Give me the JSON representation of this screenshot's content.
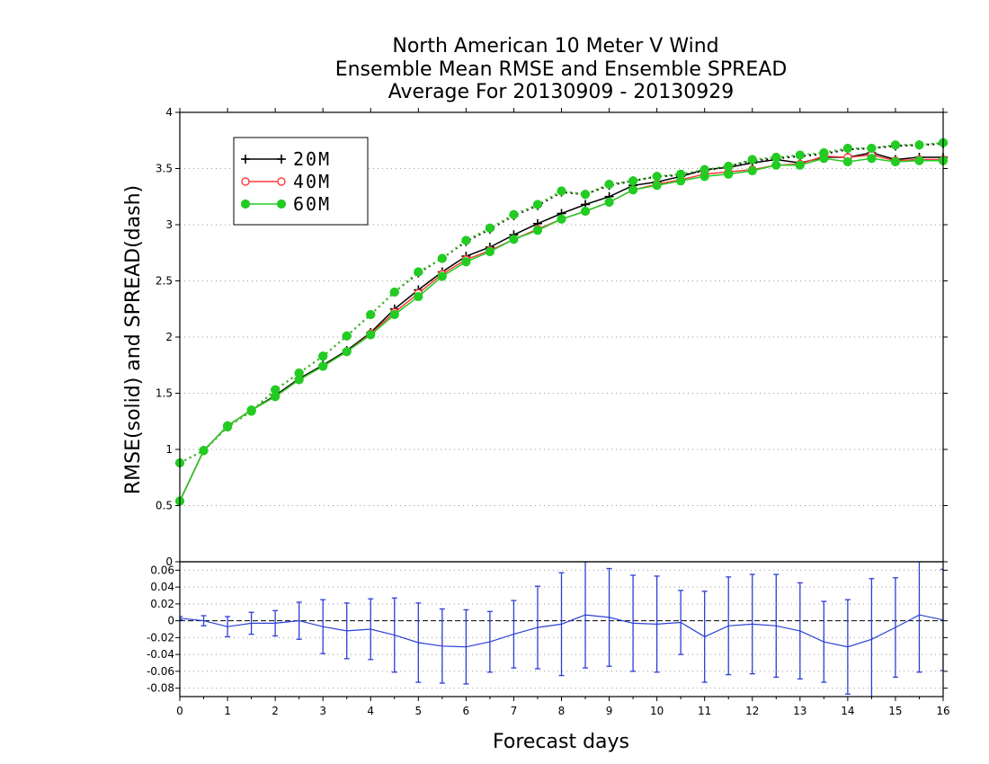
{
  "chart_data": [
    {
      "type": "line",
      "title_lines": [
        "North American 10 Meter V Wind",
        "Ensemble Mean RMSE and Ensemble SPREAD",
        "Average For 20130909 - 20130929"
      ],
      "xlabel": "Forecast days",
      "ylabel": "RMSE(solid) and SPREAD(dash)",
      "xlim": [
        0,
        16
      ],
      "ylim": [
        0,
        4
      ],
      "x_ticks": [
        "0",
        "1",
        "2",
        "3",
        "4",
        "5",
        "6",
        "7",
        "8",
        "9",
        "10",
        "11",
        "12",
        "13",
        "14",
        "15",
        "16"
      ],
      "y_ticks": [
        "0",
        "0.5",
        "1",
        "1.5",
        "2",
        "2.5",
        "3",
        "3.5",
        "4"
      ],
      "grid": "horizontal-dotted",
      "legend_position": "top-left",
      "x": [
        0,
        0.5,
        1,
        1.5,
        2,
        2.5,
        3,
        3.5,
        4,
        4.5,
        5,
        5.5,
        6,
        6.5,
        7,
        7.5,
        8,
        8.5,
        9,
        9.5,
        10,
        10.5,
        11,
        11.5,
        12,
        12.5,
        13,
        13.5,
        14,
        14.5,
        15,
        15.5,
        16
      ],
      "series": [
        {
          "name": "20M",
          "color": "#000000",
          "marker": "plus",
          "rmse": [
            0.54,
            0.99,
            1.21,
            1.35,
            1.48,
            1.63,
            1.75,
            1.88,
            2.04,
            2.25,
            2.42,
            2.58,
            2.72,
            2.8,
            2.91,
            3.01,
            3.1,
            3.18,
            3.25,
            3.35,
            3.38,
            3.43,
            3.49,
            3.51,
            3.55,
            3.58,
            3.55,
            3.6,
            3.6,
            3.64,
            3.58,
            3.6,
            3.6
          ],
          "spread": [
            0.88,
            0.99,
            1.2,
            1.34,
            1.53,
            1.68,
            1.83,
            2.01,
            2.2,
            2.4,
            2.57,
            2.7,
            2.85,
            2.96,
            3.08,
            3.17,
            3.29,
            3.27,
            3.35,
            3.39,
            3.43,
            3.44,
            3.48,
            3.52,
            3.57,
            3.59,
            3.61,
            3.63,
            3.67,
            3.68,
            3.7,
            3.71,
            3.72
          ]
        },
        {
          "name": "40M",
          "color": "#ff3a3a",
          "marker": "open-circle",
          "rmse": [
            0.54,
            0.99,
            1.21,
            1.35,
            1.47,
            1.62,
            1.74,
            1.87,
            2.03,
            2.22,
            2.39,
            2.56,
            2.69,
            2.77,
            2.87,
            2.96,
            3.05,
            3.12,
            3.2,
            3.31,
            3.36,
            3.4,
            3.45,
            3.47,
            3.49,
            3.53,
            3.54,
            3.61,
            3.6,
            3.62,
            3.57,
            3.58,
            3.58
          ],
          "spread": [
            0.88,
            0.99,
            1.2,
            1.34,
            1.53,
            1.68,
            1.83,
            2.01,
            2.2,
            2.4,
            2.58,
            2.7,
            2.86,
            2.97,
            3.09,
            3.18,
            3.3,
            3.27,
            3.36,
            3.39,
            3.43,
            3.45,
            3.49,
            3.52,
            3.58,
            3.6,
            3.62,
            3.64,
            3.68,
            3.68,
            3.71,
            3.71,
            3.73
          ]
        },
        {
          "name": "60M",
          "color": "#22cc22",
          "marker": "filled-circle",
          "rmse": [
            0.54,
            0.99,
            1.21,
            1.35,
            1.47,
            1.62,
            1.74,
            1.87,
            2.02,
            2.2,
            2.36,
            2.54,
            2.67,
            2.76,
            2.87,
            2.95,
            3.05,
            3.12,
            3.2,
            3.31,
            3.35,
            3.39,
            3.43,
            3.45,
            3.48,
            3.53,
            3.53,
            3.59,
            3.56,
            3.59,
            3.56,
            3.57,
            3.57
          ],
          "spread": [
            0.88,
            0.99,
            1.2,
            1.34,
            1.53,
            1.68,
            1.83,
            2.01,
            2.2,
            2.4,
            2.58,
            2.7,
            2.86,
            2.97,
            3.09,
            3.18,
            3.3,
            3.27,
            3.36,
            3.39,
            3.43,
            3.45,
            3.49,
            3.52,
            3.58,
            3.6,
            3.62,
            3.64,
            3.68,
            3.68,
            3.71,
            3.71,
            3.73
          ]
        }
      ]
    },
    {
      "type": "line",
      "subtype": "difference-with-error-bars",
      "color": "#2b3fd6",
      "xlim": [
        0,
        16
      ],
      "ylim": [
        -0.09,
        0.07
      ],
      "y_ticks": [
        "-0.08",
        "-0.06",
        "-0.04",
        "-0.02",
        "0",
        "0.02",
        "0.04",
        "0.06"
      ],
      "grid": "horizontal-dotted",
      "zero_line": "dashed",
      "x": [
        0,
        0.5,
        1,
        1.5,
        2,
        2.5,
        3,
        3.5,
        4,
        4.5,
        5,
        5.5,
        6,
        6.5,
        7,
        7.5,
        8,
        8.5,
        9,
        9.5,
        10,
        10.5,
        11,
        11.5,
        12,
        12.5,
        13,
        13.5,
        14,
        14.5,
        15,
        15.5,
        16
      ],
      "values": [
        0.003,
        0.0,
        -0.007,
        -0.003,
        -0.003,
        0.0,
        -0.007,
        -0.012,
        -0.01,
        -0.017,
        -0.026,
        -0.03,
        -0.031,
        -0.025,
        -0.016,
        -0.008,
        -0.004,
        0.007,
        0.004,
        -0.003,
        -0.004,
        -0.002,
        -0.019,
        -0.006,
        -0.004,
        -0.006,
        -0.012,
        -0.025,
        -0.031,
        -0.022,
        -0.008,
        0.007,
        0.001
      ],
      "error": [
        0.002,
        0.006,
        0.012,
        0.013,
        0.015,
        0.022,
        0.032,
        0.033,
        0.036,
        0.044,
        0.047,
        0.044,
        0.044,
        0.036,
        0.04,
        0.049,
        0.061,
        0.063,
        0.058,
        0.057,
        0.057,
        0.038,
        0.054,
        0.058,
        0.059,
        0.061,
        0.057,
        0.048,
        0.056,
        0.072,
        0.059,
        0.068,
        0.06
      ]
    }
  ]
}
